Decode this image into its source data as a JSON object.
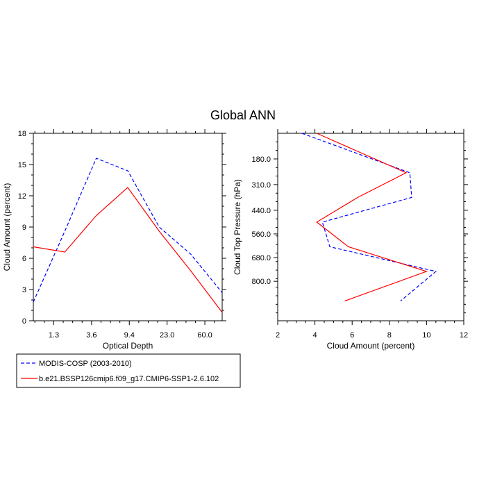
{
  "title": "Global ANN",
  "legend": {
    "placement": "bottom-left",
    "entries": [
      {
        "label": "MODIS-COSP (2003-2010)",
        "color": "#0000ff",
        "dash": true
      },
      {
        "label": "b.e21.BSSP126cmip6.f09_g17.CMIP6-SSP1-2.6.102",
        "color": "#ff0000",
        "dash": false
      }
    ]
  },
  "chart_data": [
    {
      "type": "line",
      "xlabel": "Optical Depth",
      "ylabel": "Cloud Amount (percent)",
      "xlim": [
        0,
        6
      ],
      "ylim": [
        0,
        18
      ],
      "x": [
        0,
        1,
        2,
        3,
        4,
        5,
        6
      ],
      "xtick_positions": [
        0.65,
        1.85,
        3.05,
        4.25,
        5.45
      ],
      "xtick_labels": [
        "1.3",
        "3.6",
        "9.4",
        "23.0",
        "60.0"
      ],
      "yticks": [
        0,
        3,
        6,
        9,
        12,
        15,
        18
      ],
      "ytick_labels": [
        "0",
        "3",
        "6",
        "9",
        "12",
        "15",
        "18"
      ],
      "series": [
        {
          "name": "MODIS-COSP (2003-2010)",
          "color": "#0000ff",
          "dash": true,
          "y": [
            1.8,
            8.6,
            15.6,
            14.4,
            9.0,
            6.4,
            2.7
          ]
        },
        {
          "name": "b.e21.BSSP126cmip6.f09_g17.CMIP6-SSP1-2.6.102",
          "color": "#ff0000",
          "dash": false,
          "y": [
            7.1,
            6.6,
            10.1,
            12.8,
            8.6,
            4.8,
            0.8
          ]
        }
      ]
    },
    {
      "type": "line",
      "orientation": "vertical-profile",
      "xlabel": "Cloud Amount (percent)",
      "ylabel": "Cloud Top Pressure (hPa)",
      "xlim": [
        2,
        12
      ],
      "ylim": [
        1000,
        50
      ],
      "xticks": [
        2,
        4,
        6,
        8,
        10,
        12
      ],
      "xtick_labels": [
        "2",
        "4",
        "6",
        "8",
        "10",
        "12"
      ],
      "yticks": [
        180,
        310,
        440,
        560,
        680,
        800
      ],
      "ytick_labels": [
        "180.0",
        "310.0",
        "440.0",
        "560.0",
        "680.0",
        "800.0"
      ],
      "y_levels": [
        50,
        250,
        375,
        500,
        625,
        750,
        900
      ],
      "series": [
        {
          "name": "MODIS-COSP (2003-2010)",
          "color": "#0000ff",
          "dash": true,
          "x": [
            3.3,
            9.1,
            9.2,
            4.4,
            4.8,
            10.5,
            8.6
          ]
        },
        {
          "name": "b.e21.BSSP126cmip6.f09_g17.CMIP6-SSP1-2.6.102",
          "color": "#ff0000",
          "dash": false,
          "x": [
            4.1,
            8.9,
            6.3,
            4.1,
            5.8,
            10.0,
            5.6
          ]
        }
      ]
    }
  ]
}
